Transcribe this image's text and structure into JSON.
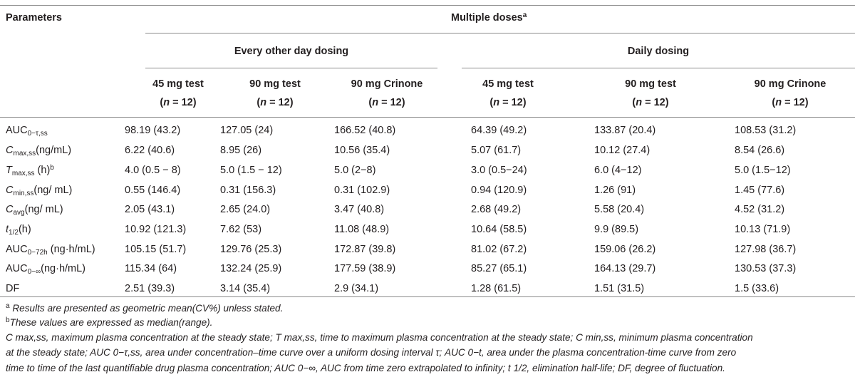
{
  "header": {
    "parameters": "Parameters",
    "multiple_doses": "Multiple doses",
    "multiple_doses_sup": "a",
    "group_eod": "Every other day dosing",
    "group_daily": "Daily dosing",
    "columns": [
      {
        "dose": "45 mg test",
        "n": "n",
        "n_value": "= 12"
      },
      {
        "dose": "90 mg test",
        "n": "n",
        "n_value": "= 12"
      },
      {
        "dose": "90 mg Crinone",
        "n": "n",
        "n_value": "= 12"
      },
      {
        "dose": "45 mg test",
        "n": "n",
        "n_value": "= 12"
      },
      {
        "dose": "90 mg test",
        "n": "n",
        "n_value": "= 12"
      },
      {
        "dose": "90 mg Crinone",
        "n": "n",
        "n_value": "= 12"
      }
    ]
  },
  "rows": [
    {
      "label": {
        "main": "AUC",
        "sub": "0−τ,ss",
        "rest": ""
      },
      "values": [
        "98.19 (43.2)",
        "127.05 (24)",
        "166.52 (40.8)",
        "64.39 (49.2)",
        "133.87 (20.4)",
        "108.53 (31.2)"
      ]
    },
    {
      "label": {
        "main": "C",
        "sub": "max,ss",
        "rest": "(ng/mL)"
      },
      "values": [
        "6.22 (40.6)",
        "8.95 (26)",
        "10.56 (35.4)",
        "5.07 (61.7)",
        "10.12 (27.4)",
        "8.54 (26.6)"
      ]
    },
    {
      "label": {
        "main": "T",
        "sub": "max,ss",
        "rest": " (h)",
        "sup": "b"
      },
      "values": [
        "4.0 (0.5 − 8)",
        "5.0 (1.5 − 12)",
        "5.0 (2−8)",
        "3.0 (0.5−24)",
        "6.0 (4−12)",
        "5.0 (1.5−12)"
      ]
    },
    {
      "label": {
        "main": "C",
        "sub": "min,ss",
        "rest": "(ng/ mL)"
      },
      "values": [
        "0.55 (146.4)",
        "0.31 (156.3)",
        "0.31 (102.9)",
        "0.94 (120.9)",
        "1.26 (91)",
        "1.45 (77.6)"
      ]
    },
    {
      "label": {
        "main": "C",
        "sub": "avg",
        "rest": "(ng/ mL)"
      },
      "values": [
        "2.05 (43.1)",
        "2.65 (24.0)",
        "3.47 (40.8)",
        "2.68 (49.2)",
        "5.58 (20.4)",
        "4.52 (31.2)"
      ]
    },
    {
      "label": {
        "main": "t",
        "sub": "1/2",
        "rest": "(h)"
      },
      "values": [
        "10.92 (121.3)",
        "7.62 (53)",
        "11.08 (48.9)",
        "10.64 (58.5)",
        "9.9 (89.5)",
        "10.13 (71.9)"
      ]
    },
    {
      "label": {
        "main": "AUC",
        "sub": "0−72h",
        "rest": " (ng·h/mL)"
      },
      "values": [
        "105.15 (51.7)",
        "129.76 (25.3)",
        "172.87 (39.8)",
        "81.02 (67.2)",
        "159.06 (26.2)",
        "127.98 (36.7)"
      ]
    },
    {
      "label": {
        "main": "AUC",
        "sub": "0−∞",
        "rest": "(ng·h/mL)"
      },
      "values": [
        "115.34 (64)",
        "132.24 (25.9)",
        "177.59 (38.9)",
        "85.27 (65.1)",
        "164.13 (29.7)",
        "130.53 (37.3)"
      ]
    },
    {
      "label": {
        "main": "DF",
        "sub": "",
        "rest": ""
      },
      "values": [
        "2.51 (39.3)",
        "3.14 (35.4)",
        "2.9 (34.1)",
        "1.28 (61.5)",
        "1.51 (31.5)",
        "1.5 (33.6)"
      ]
    }
  ],
  "footnotes": {
    "a_mark": "a",
    "a_text": " Results are presented as geometric mean(CV%) unless stated.",
    "b_mark": "b",
    "b_text": "These values are expressed as median(range).",
    "abbrev_line1": "C max,ss, maximum plasma concentration at the steady state; T max,ss, time to maximum plasma concentration at the steady state; C min,ss, minimum plasma concentration",
    "abbrev_line2": "at the steady state; AUC 0−τ,ss, area under concentration–time curve over a uniform dosing interval τ; AUC 0−t, area under the plasma concentration-time curve from zero",
    "abbrev_line3": "time to time of the last quantifiable drug plasma concentration; AUC 0−∞, AUC from time zero extrapolated to infinity; t 1/2, elimination half-life; DF, degree of fluctuation."
  }
}
